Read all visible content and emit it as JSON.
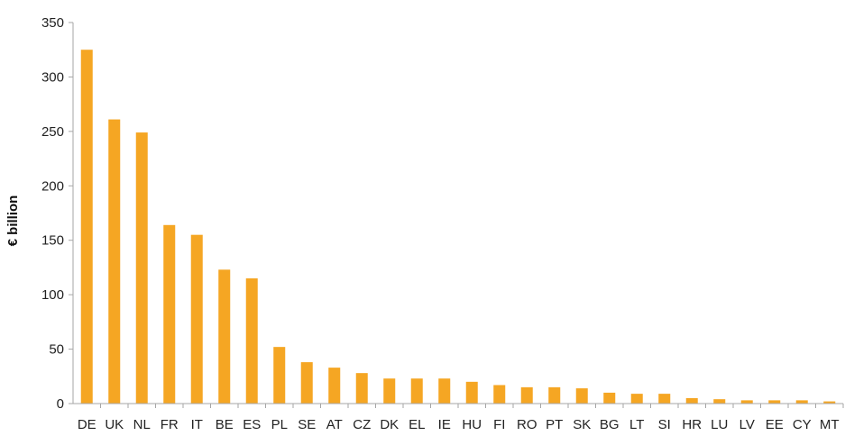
{
  "chart_data": {
    "type": "bar",
    "title": "",
    "xlabel": "",
    "ylabel": "€ billion",
    "ylim": [
      0,
      350
    ],
    "yticks": [
      0,
      50,
      100,
      150,
      200,
      250,
      300,
      350
    ],
    "grid": false,
    "legend": "none",
    "bar_color": "#F5A623",
    "axis_color": "#a6a6a6",
    "categories": [
      "DE",
      "UK",
      "NL",
      "FR",
      "IT",
      "BE",
      "ES",
      "PL",
      "SE",
      "AT",
      "CZ",
      "DK",
      "EL",
      "IE",
      "HU",
      "FI",
      "RO",
      "PT",
      "SK",
      "BG",
      "LT",
      "SI",
      "HR",
      "LU",
      "LV",
      "EE",
      "CY",
      "MT"
    ],
    "values": [
      325,
      261,
      249,
      164,
      155,
      123,
      115,
      52,
      38,
      33,
      28,
      23,
      23,
      23,
      20,
      17,
      15,
      15,
      14,
      10,
      9,
      9,
      5,
      4,
      3,
      3,
      3,
      2
    ]
  }
}
